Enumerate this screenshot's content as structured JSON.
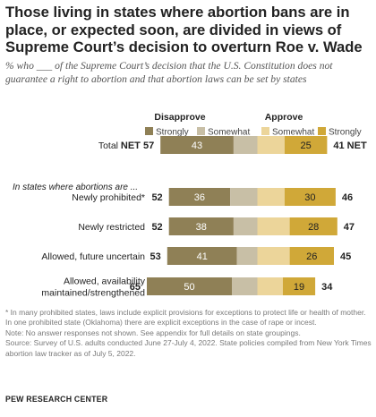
{
  "title": "Those living in states where abortion bans are in place, or expected soon, are divided in views of Supreme Court’s decision to overturn Roe v. Wade",
  "subtitle_prefix": "% who ___ of the Supreme Court’s decision that the U.S. Constitution does not guarantee a right to abortion and that abortion laws can be set by states",
  "header_disapprove": "Disapprove",
  "header_approve": "Approve",
  "section_label": "In states where abortions are ...",
  "colors": {
    "strongly_disapprove": "#8f8056",
    "somewhat_disapprove": "#c8bfa6",
    "somewhat_approve": "#ecd59a",
    "strongly_approve": "#d0a838"
  },
  "chart_data": {
    "type": "bar",
    "orientation": "horizontal-diverging",
    "legend": [
      "Strongly",
      "Somewhat",
      "Somewhat",
      "Strongly"
    ],
    "categories": [
      "Total",
      "Newly prohibited*",
      "Newly restricted",
      "Allowed, future uncertain",
      "Allowed, availability maintained/strengthened"
    ],
    "series": [
      {
        "name": "Disapprove Strongly",
        "values": [
          43,
          36,
          38,
          41,
          50
        ]
      },
      {
        "name": "Disapprove Somewhat",
        "values": [
          14,
          16,
          14,
          12,
          15
        ]
      },
      {
        "name": "Approve Somewhat",
        "values": [
          16,
          16,
          19,
          19,
          15
        ]
      },
      {
        "name": "Approve Strongly",
        "values": [
          25,
          30,
          28,
          26,
          19
        ]
      }
    ],
    "net_disapprove": [
      57,
      52,
      52,
      53,
      65
    ],
    "net_approve": [
      41,
      46,
      47,
      45,
      34
    ],
    "net_disapprove_labels": [
      "NET 57",
      "52",
      "52",
      "53",
      "65"
    ],
    "net_approve_labels": [
      "41 NET",
      "46",
      "47",
      "45",
      "34"
    ],
    "category_labels": [
      [
        "Total"
      ],
      [
        "Newly prohibited*"
      ],
      [
        "Newly restricted"
      ],
      [
        "Allowed, future uncertain"
      ],
      [
        "Allowed, availability",
        "maintained/strengthened"
      ]
    ]
  },
  "notes": [
    "* In many prohibited states, laws include explicit provisions for exceptions to protect life or health of mother. In one prohibited state (Oklahoma) there are explicit exceptions in the case of rape or incest.",
    "Note: No answer responses not shown. See appendix for full details on state groupings.",
    "Source: Survey of U.S. adults conducted June 27-July 4, 2022. State policies compiled from New York Times abortion law tracker as of July 5, 2022."
  ],
  "credit": "PEW RESEARCH CENTER"
}
